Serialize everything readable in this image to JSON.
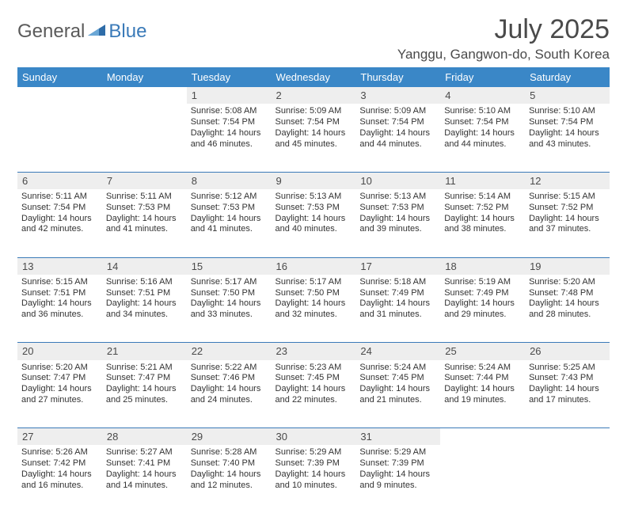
{
  "brand": {
    "part1": "General",
    "part2": "Blue"
  },
  "title": "July 2025",
  "location": "Yanggu, Gangwon-do, South Korea",
  "colors": {
    "header_bg": "#3a87c7",
    "header_text": "#ffffff",
    "daynum_bg": "#eeeeee",
    "rule": "#3a7ab8",
    "text": "#333333",
    "title_text": "#4a4a4a",
    "brand_gray": "#5a5a5a",
    "brand_blue": "#3a7ab8",
    "background": "#ffffff"
  },
  "typography": {
    "title_fontsize": 34,
    "location_fontsize": 17,
    "weekday_fontsize": 13,
    "daynum_fontsize": 13,
    "cell_fontsize": 11,
    "brand_fontsize": 24
  },
  "weekdays": [
    "Sunday",
    "Monday",
    "Tuesday",
    "Wednesday",
    "Thursday",
    "Friday",
    "Saturday"
  ],
  "weeks": [
    {
      "nums": [
        "",
        "",
        "1",
        "2",
        "3",
        "4",
        "5"
      ],
      "cells": [
        null,
        null,
        {
          "sunrise": "5:08 AM",
          "sunset": "7:54 PM",
          "daylight": "14 hours and 46 minutes."
        },
        {
          "sunrise": "5:09 AM",
          "sunset": "7:54 PM",
          "daylight": "14 hours and 45 minutes."
        },
        {
          "sunrise": "5:09 AM",
          "sunset": "7:54 PM",
          "daylight": "14 hours and 44 minutes."
        },
        {
          "sunrise": "5:10 AM",
          "sunset": "7:54 PM",
          "daylight": "14 hours and 44 minutes."
        },
        {
          "sunrise": "5:10 AM",
          "sunset": "7:54 PM",
          "daylight": "14 hours and 43 minutes."
        }
      ]
    },
    {
      "nums": [
        "6",
        "7",
        "8",
        "9",
        "10",
        "11",
        "12"
      ],
      "cells": [
        {
          "sunrise": "5:11 AM",
          "sunset": "7:54 PM",
          "daylight": "14 hours and 42 minutes."
        },
        {
          "sunrise": "5:11 AM",
          "sunset": "7:53 PM",
          "daylight": "14 hours and 41 minutes."
        },
        {
          "sunrise": "5:12 AM",
          "sunset": "7:53 PM",
          "daylight": "14 hours and 41 minutes."
        },
        {
          "sunrise": "5:13 AM",
          "sunset": "7:53 PM",
          "daylight": "14 hours and 40 minutes."
        },
        {
          "sunrise": "5:13 AM",
          "sunset": "7:53 PM",
          "daylight": "14 hours and 39 minutes."
        },
        {
          "sunrise": "5:14 AM",
          "sunset": "7:52 PM",
          "daylight": "14 hours and 38 minutes."
        },
        {
          "sunrise": "5:15 AM",
          "sunset": "7:52 PM",
          "daylight": "14 hours and 37 minutes."
        }
      ]
    },
    {
      "nums": [
        "13",
        "14",
        "15",
        "16",
        "17",
        "18",
        "19"
      ],
      "cells": [
        {
          "sunrise": "5:15 AM",
          "sunset": "7:51 PM",
          "daylight": "14 hours and 36 minutes."
        },
        {
          "sunrise": "5:16 AM",
          "sunset": "7:51 PM",
          "daylight": "14 hours and 34 minutes."
        },
        {
          "sunrise": "5:17 AM",
          "sunset": "7:50 PM",
          "daylight": "14 hours and 33 minutes."
        },
        {
          "sunrise": "5:17 AM",
          "sunset": "7:50 PM",
          "daylight": "14 hours and 32 minutes."
        },
        {
          "sunrise": "5:18 AM",
          "sunset": "7:49 PM",
          "daylight": "14 hours and 31 minutes."
        },
        {
          "sunrise": "5:19 AM",
          "sunset": "7:49 PM",
          "daylight": "14 hours and 29 minutes."
        },
        {
          "sunrise": "5:20 AM",
          "sunset": "7:48 PM",
          "daylight": "14 hours and 28 minutes."
        }
      ]
    },
    {
      "nums": [
        "20",
        "21",
        "22",
        "23",
        "24",
        "25",
        "26"
      ],
      "cells": [
        {
          "sunrise": "5:20 AM",
          "sunset": "7:47 PM",
          "daylight": "14 hours and 27 minutes."
        },
        {
          "sunrise": "5:21 AM",
          "sunset": "7:47 PM",
          "daylight": "14 hours and 25 minutes."
        },
        {
          "sunrise": "5:22 AM",
          "sunset": "7:46 PM",
          "daylight": "14 hours and 24 minutes."
        },
        {
          "sunrise": "5:23 AM",
          "sunset": "7:45 PM",
          "daylight": "14 hours and 22 minutes."
        },
        {
          "sunrise": "5:24 AM",
          "sunset": "7:45 PM",
          "daylight": "14 hours and 21 minutes."
        },
        {
          "sunrise": "5:24 AM",
          "sunset": "7:44 PM",
          "daylight": "14 hours and 19 minutes."
        },
        {
          "sunrise": "5:25 AM",
          "sunset": "7:43 PM",
          "daylight": "14 hours and 17 minutes."
        }
      ]
    },
    {
      "nums": [
        "27",
        "28",
        "29",
        "30",
        "31",
        "",
        ""
      ],
      "cells": [
        {
          "sunrise": "5:26 AM",
          "sunset": "7:42 PM",
          "daylight": "14 hours and 16 minutes."
        },
        {
          "sunrise": "5:27 AM",
          "sunset": "7:41 PM",
          "daylight": "14 hours and 14 minutes."
        },
        {
          "sunrise": "5:28 AM",
          "sunset": "7:40 PM",
          "daylight": "14 hours and 12 minutes."
        },
        {
          "sunrise": "5:29 AM",
          "sunset": "7:39 PM",
          "daylight": "14 hours and 10 minutes."
        },
        {
          "sunrise": "5:29 AM",
          "sunset": "7:39 PM",
          "daylight": "14 hours and 9 minutes."
        },
        null,
        null
      ]
    }
  ],
  "labels": {
    "sunrise": "Sunrise: ",
    "sunset": "Sunset: ",
    "daylight": "Daylight: "
  }
}
